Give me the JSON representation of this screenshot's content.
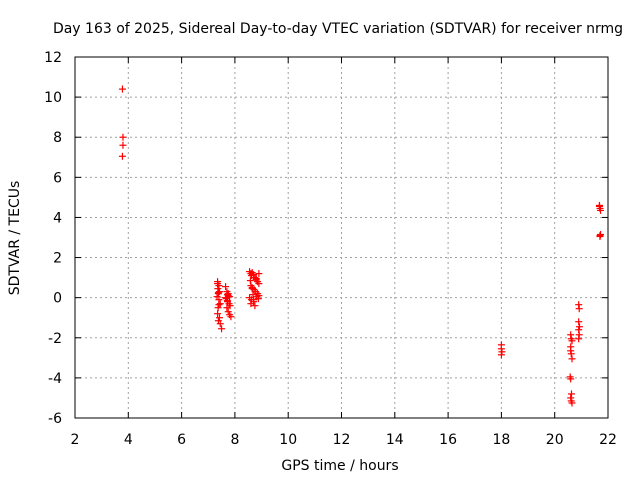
{
  "chart_data": {
    "type": "scatter",
    "title": "Day 163 of 2025, Sidereal Day-to-day VTEC variation (SDTVAR) for receiver nrmg",
    "xlabel": "GPS time / hours",
    "ylabel": "SDTVAR / TECUs",
    "xlim": [
      2,
      22
    ],
    "ylim": [
      -6,
      12
    ],
    "xticks": [
      2,
      4,
      6,
      8,
      10,
      12,
      14,
      16,
      18,
      20,
      22
    ],
    "yticks": [
      -6,
      -4,
      -2,
      0,
      2,
      4,
      6,
      8,
      10,
      12
    ],
    "grid": true,
    "marker": "+",
    "marker_color": "#ff0000",
    "series": [
      {
        "name": "SDTVAR",
        "x": [
          3.78,
          3.8,
          3.8,
          3.78,
          7.35,
          7.4,
          7.36,
          7.42,
          7.38,
          7.33,
          7.4,
          7.45,
          7.37,
          7.35,
          7.42,
          7.38,
          7.45,
          7.5,
          7.35,
          7.38,
          7.4,
          7.65,
          7.7,
          7.72,
          7.75,
          7.8,
          7.68,
          7.72,
          7.78,
          7.82,
          7.7,
          7.75,
          7.8,
          7.65,
          7.72,
          7.85,
          7.75,
          8.55,
          8.6,
          8.62,
          8.65,
          8.7,
          8.75,
          8.8,
          8.85,
          8.9,
          8.6,
          8.65,
          8.72,
          8.78,
          8.85,
          8.9,
          8.55,
          8.62,
          8.7,
          8.75,
          8.82,
          8.88,
          8.58,
          8.68,
          8.8,
          8.9,
          8.6,
          8.65,
          8.7,
          18.0,
          18.0,
          18.02,
          18.0,
          20.6,
          20.62,
          20.65,
          20.6,
          20.62,
          20.65,
          20.58,
          20.6,
          20.63,
          20.6,
          20.62,
          20.65,
          20.6,
          20.9,
          20.92,
          20.9,
          20.93,
          20.9,
          20.92,
          20.9,
          21.68,
          21.7,
          21.72,
          21.68,
          21.7,
          21.72,
          21.7
        ],
        "y": [
          10.4,
          8.0,
          7.6,
          7.05,
          0.8,
          0.6,
          0.45,
          0.3,
          0.2,
          0.05,
          -0.1,
          -0.3,
          -0.5,
          -0.8,
          -1.0,
          -1.15,
          -1.3,
          -1.55,
          0.7,
          0.25,
          -0.35,
          0.55,
          0.3,
          0.15,
          0.1,
          0.05,
          -0.05,
          -0.15,
          -0.3,
          -0.4,
          -0.5,
          -0.7,
          -0.85,
          0.0,
          -0.2,
          -0.95,
          0.2,
          1.3,
          1.2,
          1.1,
          1.25,
          1.15,
          1.0,
          0.9,
          0.8,
          0.7,
          0.6,
          0.5,
          0.4,
          0.3,
          0.2,
          0.1,
          0.0,
          -0.1,
          -0.2,
          -0.4,
          0.05,
          -0.05,
          0.85,
          0.15,
          0.95,
          1.2,
          -0.3,
          0.45,
          -0.1,
          -2.35,
          -2.55,
          -2.7,
          -2.85,
          -1.85,
          -2.05,
          -2.15,
          -2.65,
          -2.8,
          -3.05,
          -3.95,
          -4.05,
          -4.8,
          -5.0,
          -5.15,
          -5.25,
          -2.45,
          -0.35,
          -0.55,
          -1.2,
          -1.45,
          -1.6,
          -1.85,
          -2.05,
          4.6,
          4.45,
          4.35,
          4.55,
          3.1,
          3.15,
          3.05
        ]
      }
    ]
  }
}
